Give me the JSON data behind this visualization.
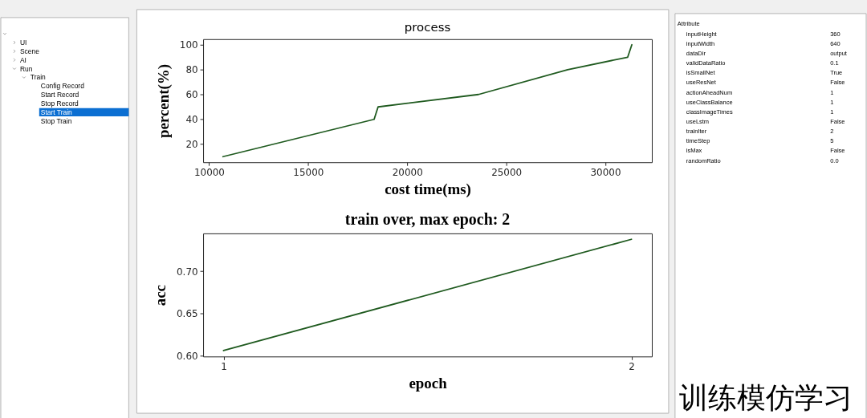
{
  "chart_data": [
    {
      "type": "other",
      "categories": [
        null,
        "UI",
        "Scene",
        "AI",
        "Run",
        "Train",
        "Config Record",
        "Start Record",
        "Stop Record",
        "Start Train",
        "Stop Train"
      ],
      "colors": [
        "#ffffff",
        "#ffffff",
        "#ffffff",
        "#ffffff",
        "#ffffff",
        "#ffffff",
        "#ffffff",
        "#ffffff",
        "#ffffff",
        "#0c6fd2",
        "#ffffff"
      ]
    },
    {
      "type": "line",
      "title": "process",
      "xlabel": "cost time(ms)",
      "ylabel": "percent(%)",
      "x": [
        10700,
        18330,
        18530,
        23600,
        28100,
        31130,
        31340
      ],
      "series": [
        {
          "color": "#1f5a1f",
          "values": [
            10,
            40,
            50,
            60,
            80,
            90,
            100
          ]
        }
      ],
      "xlim": [
        9700,
        32350
      ],
      "ylim": [
        5.5,
        104.5
      ],
      "xticks": [
        10000,
        15000,
        20000,
        25000,
        30000
      ],
      "yticks": [
        20,
        40,
        60,
        80,
        100
      ]
    },
    {
      "type": "line",
      "title": "train over, max epoch: 2",
      "xlabel": "epoch",
      "ylabel": "acc",
      "x": [
        1,
        2
      ],
      "series": [
        {
          "color": "#1f5a1f",
          "values": [
            0.606,
            0.738
          ]
        }
      ],
      "xlim": [
        0.95,
        2.05
      ],
      "ylim": [
        0.599,
        0.745
      ],
      "xticks": [
        1,
        2
      ],
      "yticks": [
        {
          "value": 0.6,
          "label": "0.60"
        },
        0.65,
        {
          "value": 0.7,
          "label": "0.70"
        }
      ]
    },
    {
      "type": "other",
      "title": "Attribute",
      "categories": [
        "inputHeight",
        "inputWidth",
        "dataDir",
        "validDataRatio",
        "isSmallNet",
        "useResNet",
        "actionAheadNum",
        "useClassBalance",
        "classImageTimes",
        "useLstm",
        "trainIter",
        "timeStep",
        "isMax",
        "randomRatio"
      ],
      "value_labels": [
        "360",
        "640",
        "output",
        "0.1",
        "True",
        "False",
        "1",
        "1",
        "1",
        "False",
        "2",
        "5",
        "False",
        "0.0"
      ],
      "annotations": [
        "训练模仿学习"
      ]
    }
  ]
}
